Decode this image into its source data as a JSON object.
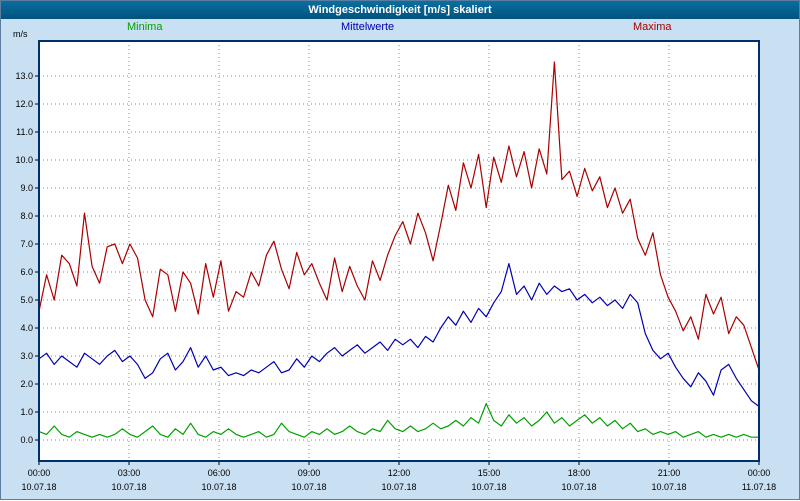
{
  "window": {
    "title": "Windgeschwindigkeit [m/s] skaliert"
  },
  "colors": {
    "background": "#c9dff2",
    "titlebar": "#00537d",
    "title_text": "#ffffff",
    "plot_frame": "#003069",
    "grid": "#8a8a8a",
    "axis": "#000000"
  },
  "legend": {
    "items": [
      {
        "label": "Minima",
        "color": "#00a000"
      },
      {
        "label": "Mittelwerte",
        "color": "#0000b4"
      },
      {
        "label": "Maxima",
        "color": "#aa0000"
      }
    ]
  },
  "chart_data": {
    "type": "line",
    "title": "Windgeschwindigkeit [m/s] skaliert",
    "ylabel": "m/s",
    "ylim": [
      -0.75,
      14.25
    ],
    "grid": true,
    "y_ticks": [
      "0.0",
      "1.0",
      "2.0",
      "3.0",
      "4.0",
      "5.0",
      "6.0",
      "7.0",
      "8.0",
      "9.0",
      "10.0",
      "11.0",
      "12.0",
      "13.0"
    ],
    "x_ticks": [
      {
        "time": "00:00",
        "date": "10.07.18"
      },
      {
        "time": "03:00",
        "date": "10.07.18"
      },
      {
        "time": "06:00",
        "date": "10.07.18"
      },
      {
        "time": "09:00",
        "date": "10.07.18"
      },
      {
        "time": "12:00",
        "date": "10.07.18"
      },
      {
        "time": "15:00",
        "date": "10.07.18"
      },
      {
        "time": "18:00",
        "date": "10.07.18"
      },
      {
        "time": "21:00",
        "date": "10.07.18"
      },
      {
        "time": "00:00",
        "date": "11.07.18"
      }
    ],
    "sample_interval_minutes": 15,
    "series": [
      {
        "name": "Minima",
        "color": "#00a000",
        "values": [
          0.3,
          0.2,
          0.5,
          0.2,
          0.1,
          0.3,
          0.2,
          0.1,
          0.2,
          0.1,
          0.2,
          0.4,
          0.2,
          0.1,
          0.3,
          0.5,
          0.2,
          0.1,
          0.4,
          0.2,
          0.6,
          0.2,
          0.1,
          0.3,
          0.2,
          0.4,
          0.2,
          0.1,
          0.2,
          0.3,
          0.1,
          0.2,
          0.6,
          0.3,
          0.2,
          0.1,
          0.3,
          0.2,
          0.4,
          0.2,
          0.3,
          0.5,
          0.3,
          0.2,
          0.4,
          0.3,
          0.7,
          0.4,
          0.3,
          0.5,
          0.3,
          0.4,
          0.6,
          0.4,
          0.5,
          0.7,
          0.5,
          0.8,
          0.6,
          1.3,
          0.7,
          0.5,
          0.9,
          0.6,
          0.8,
          0.5,
          0.7,
          1.0,
          0.6,
          0.8,
          0.5,
          0.7,
          0.9,
          0.6,
          0.8,
          0.5,
          0.7,
          0.4,
          0.6,
          0.3,
          0.4,
          0.2,
          0.3,
          0.2,
          0.3,
          0.1,
          0.2,
          0.3,
          0.1,
          0.2,
          0.1,
          0.2,
          0.1,
          0.2,
          0.1,
          0.1
        ]
      },
      {
        "name": "Mittelwerte",
        "color": "#0000b4",
        "values": [
          2.9,
          3.1,
          2.7,
          3.0,
          2.8,
          2.6,
          3.1,
          2.9,
          2.7,
          3.0,
          3.2,
          2.8,
          3.0,
          2.7,
          2.2,
          2.4,
          2.9,
          3.1,
          2.5,
          2.8,
          3.3,
          2.6,
          3.0,
          2.5,
          2.6,
          2.3,
          2.4,
          2.3,
          2.5,
          2.4,
          2.6,
          2.8,
          2.4,
          2.5,
          2.9,
          2.6,
          3.0,
          2.8,
          3.1,
          3.3,
          3.0,
          3.2,
          3.4,
          3.1,
          3.3,
          3.5,
          3.2,
          3.6,
          3.4,
          3.6,
          3.3,
          3.7,
          3.5,
          4.0,
          4.4,
          4.1,
          4.6,
          4.2,
          4.7,
          4.4,
          4.9,
          5.3,
          6.3,
          5.2,
          5.5,
          5.0,
          5.6,
          5.2,
          5.5,
          5.3,
          5.4,
          5.0,
          5.2,
          4.9,
          5.1,
          4.8,
          5.0,
          4.7,
          5.2,
          4.9,
          3.8,
          3.2,
          2.9,
          3.1,
          2.6,
          2.2,
          1.9,
          2.4,
          2.1,
          1.6,
          2.5,
          2.7,
          2.2,
          1.8,
          1.4,
          1.2
        ]
      },
      {
        "name": "Maxima",
        "color": "#aa0000",
        "values": [
          4.6,
          5.9,
          5.0,
          6.6,
          6.3,
          5.5,
          8.1,
          6.2,
          5.6,
          6.9,
          7.0,
          6.3,
          7.0,
          6.5,
          5.0,
          4.4,
          6.1,
          5.9,
          4.6,
          6.0,
          5.6,
          4.5,
          6.3,
          5.1,
          6.4,
          4.6,
          5.3,
          5.1,
          6.0,
          5.5,
          6.6,
          7.1,
          6.1,
          5.4,
          6.7,
          5.9,
          6.3,
          5.6,
          5.0,
          6.5,
          5.3,
          6.2,
          5.5,
          5.0,
          6.4,
          5.7,
          6.6,
          7.3,
          7.8,
          7.0,
          8.1,
          7.4,
          6.4,
          7.7,
          9.1,
          8.2,
          9.9,
          9.0,
          10.2,
          8.3,
          10.1,
          9.2,
          10.5,
          9.4,
          10.3,
          9.0,
          10.4,
          9.5,
          13.5,
          9.3,
          9.6,
          8.7,
          9.7,
          8.9,
          9.4,
          8.3,
          9.0,
          8.1,
          8.6,
          7.2,
          6.6,
          7.4,
          5.9,
          5.1,
          4.6,
          3.9,
          4.4,
          3.6,
          5.2,
          4.5,
          5.1,
          3.8,
          4.4,
          4.1,
          3.3,
          2.5
        ]
      }
    ]
  }
}
